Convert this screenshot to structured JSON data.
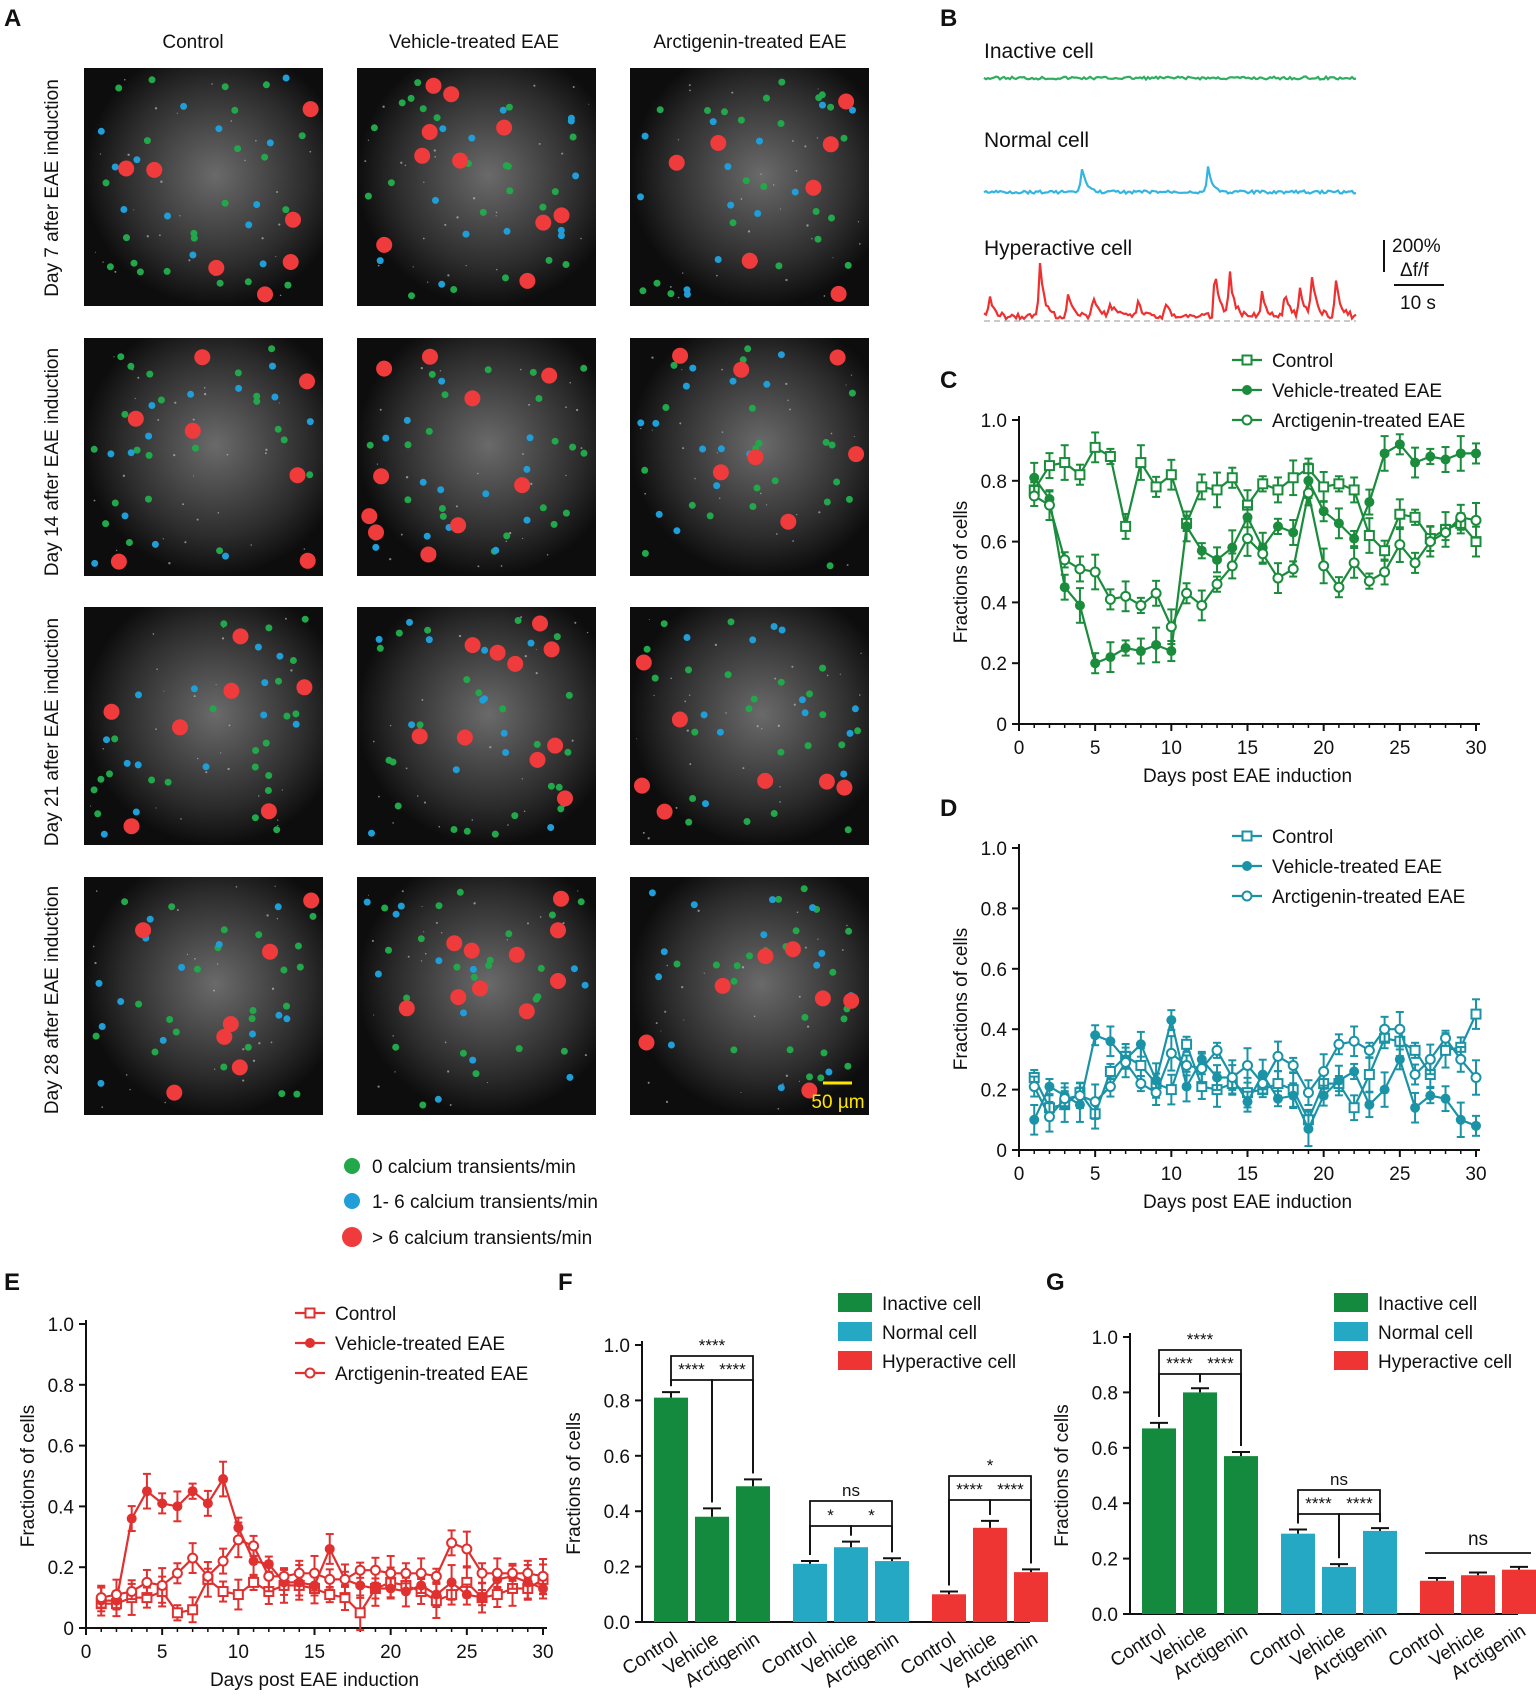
{
  "figure": {
    "panel_labels": [
      "A",
      "B",
      "C",
      "D",
      "E",
      "F",
      "G"
    ]
  },
  "panel_a": {
    "columns": [
      "Control",
      "Vehicle-treated EAE",
      "Arctigenin-treated EAE"
    ],
    "rows": [
      "Day 7 after EAE induction",
      "Day 14 after EAE induction",
      "Day 21 after EAE induction",
      "Day 28 after EAE induction"
    ],
    "scale_bar": "50 µm",
    "legend": [
      {
        "label": "0 calcium transients/min",
        "color": "#22a84a"
      },
      {
        "label": "1- 6 calcium transients/min",
        "color": "#1f9ed8"
      },
      {
        "label": "> 6 calcium transients/min",
        "color": "#ef3b3b"
      }
    ]
  },
  "panel_b": {
    "traces": [
      {
        "label": "Inactive cell",
        "color": "#2fae61"
      },
      {
        "label": "Normal cell",
        "color": "#33b5e0"
      },
      {
        "label": "Hyperactive cell",
        "color": "#ee3030"
      }
    ],
    "scale_y": "200%",
    "scale_y_unit": "Δf/f",
    "scale_x": "10 s"
  },
  "colors": {
    "inactive": "#1a8c3c",
    "normal": "#1b93a6",
    "hyper": "#e03030",
    "bar_green": "#138a3e",
    "bar_cyan": "#25a8c4",
    "bar_red": "#ef3434"
  },
  "chart_data": [
    {
      "id": "C",
      "type": "line",
      "xlabel": "Days post EAE induction",
      "ylabel": "Fractions of cells",
      "xlim": [
        0,
        30
      ],
      "ylim": [
        0,
        1.0
      ],
      "xticks": [
        0,
        5,
        10,
        15,
        20,
        25,
        30
      ],
      "yticks": [
        0,
        0.2,
        0.4,
        0.6,
        0.8,
        1.0
      ],
      "ytick_labels": [
        "0",
        "0.2",
        "0.4",
        "0.6",
        "0.8",
        "1.0"
      ],
      "x": [
        1,
        2,
        3,
        4,
        5,
        6,
        7,
        8,
        9,
        10,
        11,
        12,
        13,
        14,
        15,
        16,
        17,
        18,
        19,
        20,
        21,
        22,
        23,
        24,
        25,
        26,
        27,
        28,
        29,
        30
      ],
      "series": [
        {
          "name": "Control",
          "marker": "open-square",
          "values": [
            0.77,
            0.85,
            0.86,
            0.82,
            0.91,
            0.88,
            0.65,
            0.86,
            0.78,
            0.82,
            0.66,
            0.78,
            0.77,
            0.81,
            0.72,
            0.79,
            0.77,
            0.81,
            0.84,
            0.78,
            0.79,
            0.77,
            0.62,
            0.57,
            0.69,
            0.68,
            0.61,
            0.64,
            0.66,
            0.6
          ]
        },
        {
          "name": "Vehicle-treated EAE",
          "marker": "filled-circle",
          "values": [
            0.81,
            0.74,
            0.45,
            0.39,
            0.2,
            0.22,
            0.25,
            0.24,
            0.26,
            0.24,
            0.65,
            0.57,
            0.54,
            0.58,
            0.68,
            0.58,
            0.65,
            0.63,
            0.8,
            0.7,
            0.66,
            0.61,
            0.73,
            0.89,
            0.92,
            0.86,
            0.88,
            0.87,
            0.89,
            0.89
          ]
        },
        {
          "name": "Arctigenin-treated EAE",
          "marker": "open-circle",
          "values": [
            0.75,
            0.72,
            0.54,
            0.51,
            0.5,
            0.41,
            0.42,
            0.39,
            0.43,
            0.32,
            0.43,
            0.39,
            0.46,
            0.52,
            0.61,
            0.56,
            0.48,
            0.51,
            0.76,
            0.52,
            0.45,
            0.53,
            0.47,
            0.5,
            0.59,
            0.53,
            0.6,
            0.63,
            0.68,
            0.67
          ]
        }
      ]
    },
    {
      "id": "D",
      "type": "line",
      "xlabel": "Days post EAE induction",
      "ylabel": "Fractions of cells",
      "xlim": [
        0,
        30
      ],
      "ylim": [
        0,
        1.0
      ],
      "xticks": [
        0,
        5,
        10,
        15,
        20,
        25,
        30
      ],
      "yticks": [
        0,
        0.2,
        0.4,
        0.6,
        0.8,
        1.0
      ],
      "ytick_labels": [
        "0",
        "0.2",
        "0.4",
        "0.6",
        "0.8",
        "1.0"
      ],
      "x": [
        1,
        2,
        3,
        4,
        5,
        6,
        7,
        8,
        9,
        10,
        11,
        12,
        13,
        14,
        15,
        16,
        17,
        18,
        19,
        20,
        21,
        22,
        23,
        24,
        25,
        26,
        27,
        28,
        29,
        30
      ],
      "series": [
        {
          "name": "Control",
          "marker": "open-square",
          "values": [
            0.24,
            0.14,
            0.15,
            0.19,
            0.12,
            0.26,
            0.31,
            0.28,
            0.22,
            0.2,
            0.35,
            0.21,
            0.2,
            0.22,
            0.19,
            0.2,
            0.22,
            0.2,
            0.1,
            0.22,
            0.22,
            0.14,
            0.25,
            0.37,
            0.36,
            0.33,
            0.25,
            0.33,
            0.34,
            0.45
          ]
        },
        {
          "name": "Vehicle-treated EAE",
          "marker": "filled-circle",
          "values": [
            0.1,
            0.21,
            0.18,
            0.15,
            0.38,
            0.36,
            0.3,
            0.35,
            0.23,
            0.43,
            0.21,
            0.3,
            0.24,
            0.24,
            0.16,
            0.25,
            0.17,
            0.18,
            0.07,
            0.18,
            0.23,
            0.26,
            0.15,
            0.2,
            0.3,
            0.14,
            0.18,
            0.17,
            0.1,
            0.08
          ]
        },
        {
          "name": "Arctigenin-treated EAE",
          "marker": "open-circle",
          "values": [
            0.21,
            0.11,
            0.17,
            0.18,
            0.16,
            0.21,
            0.29,
            0.22,
            0.19,
            0.32,
            0.28,
            0.27,
            0.33,
            0.24,
            0.28,
            0.22,
            0.31,
            0.28,
            0.19,
            0.26,
            0.35,
            0.36,
            0.33,
            0.4,
            0.4,
            0.25,
            0.3,
            0.37,
            0.3,
            0.24
          ]
        }
      ]
    },
    {
      "id": "E",
      "type": "line",
      "xlabel": "Days post EAE induction",
      "ylabel": "Fractions of cells",
      "xlim": [
        0,
        30
      ],
      "ylim": [
        0,
        1.0
      ],
      "xticks": [
        0,
        5,
        10,
        15,
        20,
        25,
        30
      ],
      "yticks": [
        0,
        0.2,
        0.4,
        0.6,
        0.8,
        1.0
      ],
      "ytick_labels": [
        "0",
        "0.2",
        "0.4",
        "0.6",
        "0.8",
        "1.0"
      ],
      "x": [
        1,
        2,
        3,
        4,
        5,
        6,
        7,
        8,
        9,
        10,
        11,
        12,
        13,
        14,
        15,
        16,
        17,
        18,
        19,
        20,
        21,
        22,
        23,
        24,
        25,
        26,
        27,
        28,
        29,
        30
      ],
      "series": [
        {
          "name": "Control",
          "marker": "open-square",
          "values": [
            0.08,
            0.08,
            0.1,
            0.1,
            0.12,
            0.05,
            0.06,
            0.16,
            0.12,
            0.11,
            0.15,
            0.12,
            0.14,
            0.14,
            0.13,
            0.11,
            0.1,
            0.05,
            0.13,
            0.15,
            0.14,
            0.12,
            0.09,
            0.11,
            0.15,
            0.1,
            0.11,
            0.13,
            0.13,
            0.16
          ]
        },
        {
          "name": "Vehicle-treated EAE",
          "marker": "filled-circle",
          "values": [
            0.09,
            0.09,
            0.36,
            0.45,
            0.41,
            0.4,
            0.45,
            0.41,
            0.49,
            0.33,
            0.22,
            0.21,
            0.15,
            0.15,
            0.14,
            0.26,
            0.16,
            0.14,
            0.13,
            0.13,
            0.12,
            0.14,
            0.11,
            0.15,
            0.11,
            0.1,
            0.16,
            0.17,
            0.15,
            0.13
          ]
        },
        {
          "name": "Arctigenin-treated EAE",
          "marker": "open-circle",
          "values": [
            0.1,
            0.11,
            0.12,
            0.15,
            0.14,
            0.18,
            0.23,
            0.17,
            0.22,
            0.29,
            0.27,
            0.17,
            0.17,
            0.18,
            0.18,
            0.16,
            0.16,
            0.19,
            0.19,
            0.18,
            0.18,
            0.18,
            0.17,
            0.28,
            0.26,
            0.18,
            0.18,
            0.18,
            0.18,
            0.17
          ]
        }
      ]
    },
    {
      "id": "F",
      "type": "bar",
      "ylabel": "Fractions of cells",
      "ylim": [
        0,
        1.0
      ],
      "yticks": [
        0,
        0.2,
        0.4,
        0.6,
        0.8,
        1.0
      ],
      "ytick_labels": [
        "0.0",
        "0.2",
        "0.4",
        "0.6",
        "0.8",
        "1.0"
      ],
      "legend": [
        "Inactive cell",
        "Normal cell",
        "Hyperactive cell"
      ],
      "groups": [
        {
          "name": "Inactive cell",
          "categories": [
            "Control",
            "Vehicle",
            "Arctigenin"
          ],
          "values": [
            0.81,
            0.38,
            0.49
          ],
          "errors": [
            0.02,
            0.03,
            0.025
          ]
        },
        {
          "name": "Normal cell",
          "categories": [
            "Control",
            "Vehicle",
            "Arctigenin"
          ],
          "values": [
            0.21,
            0.27,
            0.22
          ],
          "errors": [
            0.01,
            0.02,
            0.01
          ]
        },
        {
          "name": "Hyperactive cell",
          "categories": [
            "Control",
            "Vehicle",
            "Arctigenin"
          ],
          "values": [
            0.1,
            0.34,
            0.18
          ],
          "errors": [
            0.01,
            0.025,
            0.01
          ]
        }
      ],
      "significance": [
        "****",
        "****",
        "****",
        "ns",
        "*",
        "*",
        "*",
        "****",
        "****"
      ]
    },
    {
      "id": "G",
      "type": "bar",
      "ylabel": "Fractions of cells",
      "ylim": [
        0,
        1.0
      ],
      "yticks": [
        0,
        0.2,
        0.4,
        0.6,
        0.8,
        1.0
      ],
      "ytick_labels": [
        "0.0",
        "0.2",
        "0.4",
        "0.6",
        "0.8",
        "1.0"
      ],
      "legend": [
        "Inactive cell",
        "Normal cell",
        "Hyperactive cell"
      ],
      "groups": [
        {
          "name": "Inactive cell",
          "categories": [
            "Control",
            "Vehicle",
            "Arctigenin"
          ],
          "values": [
            0.67,
            0.8,
            0.57
          ],
          "errors": [
            0.02,
            0.015,
            0.015
          ]
        },
        {
          "name": "Normal cell",
          "categories": [
            "Control",
            "Vehicle",
            "Arctigenin"
          ],
          "values": [
            0.29,
            0.17,
            0.3
          ],
          "errors": [
            0.015,
            0.01,
            0.01
          ]
        },
        {
          "name": "Hyperactive cell",
          "categories": [
            "Control",
            "Vehicle",
            "Arctigenin"
          ],
          "values": [
            0.12,
            0.14,
            0.16
          ],
          "errors": [
            0.01,
            0.01,
            0.01
          ]
        }
      ],
      "significance": [
        "****",
        "****",
        "****",
        "ns",
        "****",
        "****",
        "ns"
      ]
    }
  ]
}
